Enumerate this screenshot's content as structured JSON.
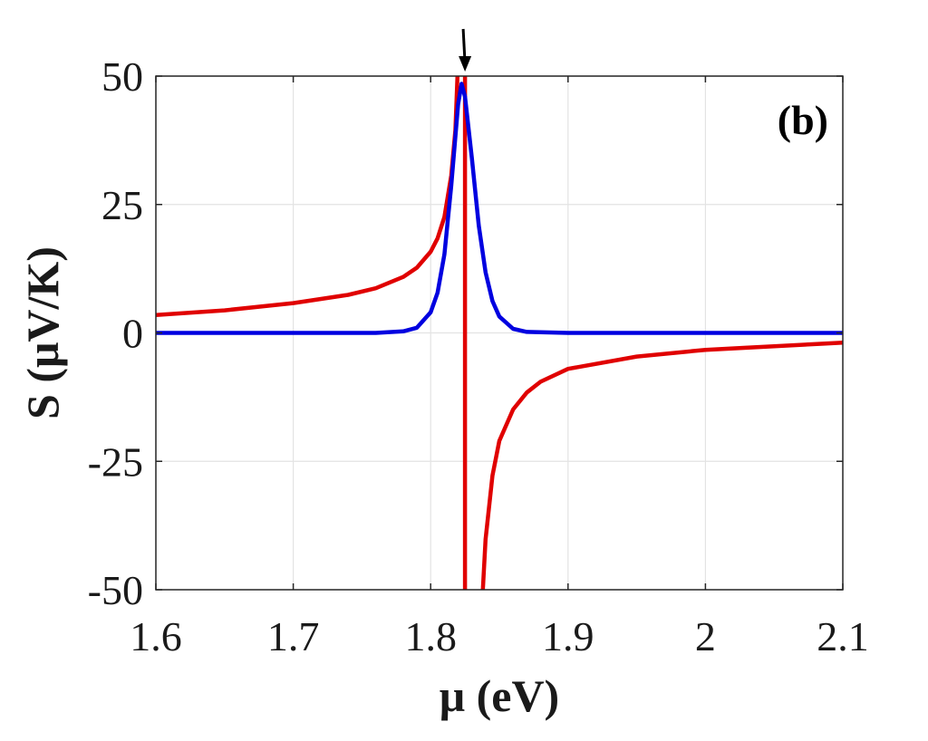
{
  "chart_data": {
    "type": "line",
    "panel_label": "(b)",
    "title": "",
    "xlabel": "μ (eV)",
    "ylabel": "S (μV/K)",
    "xlim": [
      1.6,
      2.1
    ],
    "ylim": [
      -50,
      50
    ],
    "x_ticks": [
      1.6,
      1.7,
      1.8,
      1.9,
      2.0,
      2.1
    ],
    "x_tick_labels": [
      "1.6",
      "1.7",
      "1.8",
      "1.9",
      "2",
      "2.1"
    ],
    "y_ticks": [
      50,
      25,
      0,
      -25,
      -50
    ],
    "y_tick_labels": [
      "50",
      "25",
      "0",
      "-25",
      "-50"
    ],
    "grid": true,
    "marker_arrow_x": 1.825,
    "series": [
      {
        "color": "#e00000",
        "points_left": [
          [
            1.6,
            3.5
          ],
          [
            1.65,
            4.4
          ],
          [
            1.7,
            5.8
          ],
          [
            1.74,
            7.4
          ],
          [
            1.76,
            8.7
          ],
          [
            1.78,
            10.9
          ],
          [
            1.79,
            12.7
          ],
          [
            1.8,
            15.8
          ],
          [
            1.805,
            18.4
          ],
          [
            1.81,
            22.6
          ],
          [
            1.815,
            30.6
          ],
          [
            1.818,
            39.5
          ],
          [
            1.8195,
            50.0
          ]
        ],
        "vertical_x": 1.825,
        "points_right": [
          [
            1.838,
            -50.0
          ],
          [
            1.84,
            -40.2
          ],
          [
            1.845,
            -27.8
          ],
          [
            1.85,
            -21.0
          ],
          [
            1.86,
            -14.9
          ],
          [
            1.87,
            -11.6
          ],
          [
            1.88,
            -9.5
          ],
          [
            1.9,
            -7.0
          ],
          [
            1.95,
            -4.6
          ],
          [
            2.0,
            -3.3
          ],
          [
            2.05,
            -2.6
          ],
          [
            2.1,
            -1.9
          ]
        ]
      },
      {
        "color": "#0000e0",
        "peak_x": 1.8225,
        "peak_y": 48.5,
        "points": [
          [
            1.6,
            0.0
          ],
          [
            1.76,
            0.0
          ],
          [
            1.78,
            0.3
          ],
          [
            1.79,
            1.0
          ],
          [
            1.8,
            4.0
          ],
          [
            1.805,
            7.8
          ],
          [
            1.81,
            15.3
          ],
          [
            1.815,
            28.6
          ],
          [
            1.82,
            44.5
          ],
          [
            1.8225,
            48.5
          ],
          [
            1.825,
            46.0
          ],
          [
            1.83,
            34.0
          ],
          [
            1.835,
            20.9
          ],
          [
            1.84,
            11.8
          ],
          [
            1.845,
            6.2
          ],
          [
            1.85,
            3.2
          ],
          [
            1.86,
            0.8
          ],
          [
            1.87,
            0.2
          ],
          [
            1.9,
            0.0
          ],
          [
            2.1,
            0.0
          ]
        ]
      }
    ]
  }
}
